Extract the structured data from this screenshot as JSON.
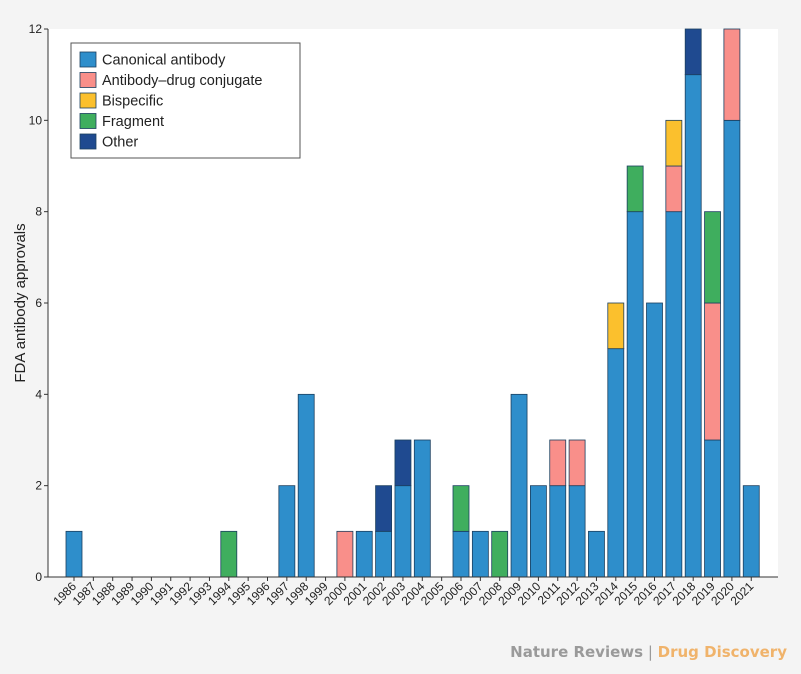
{
  "chart_data": {
    "type": "bar",
    "stacked": true,
    "title": "",
    "xlabel": "",
    "ylabel": "FDA antibody approvals",
    "ylim": [
      0,
      12
    ],
    "yticks": [
      0,
      2,
      4,
      6,
      8,
      10,
      12
    ],
    "grid": false,
    "legend_position": "top-left",
    "categories": [
      "1986",
      "1987",
      "1988",
      "1989",
      "1990",
      "1991",
      "1992",
      "1993",
      "1994",
      "1995",
      "1996",
      "1997",
      "1998",
      "1999",
      "2000",
      "2001",
      "2002",
      "2003",
      "2004",
      "2005",
      "2006",
      "2007",
      "2008",
      "2009",
      "2010",
      "2011",
      "2012",
      "2013",
      "2014",
      "2015",
      "2016",
      "2017",
      "2018",
      "2019",
      "2020",
      "2021"
    ],
    "series": [
      {
        "name": "Canonical antibody",
        "color": "#2e8ecb",
        "values": [
          1,
          0,
          0,
          0,
          0,
          0,
          0,
          0,
          0,
          0,
          0,
          2,
          4,
          0,
          0,
          1,
          1,
          2,
          3,
          0,
          1,
          1,
          0,
          4,
          2,
          2,
          2,
          1,
          5,
          8,
          6,
          8,
          11,
          3,
          10,
          2
        ]
      },
      {
        "name": "Antibody–drug conjugate",
        "color": "#f98f8a",
        "values": [
          0,
          0,
          0,
          0,
          0,
          0,
          0,
          0,
          0,
          0,
          0,
          0,
          0,
          0,
          1,
          0,
          0,
          0,
          0,
          0,
          0,
          0,
          0,
          0,
          0,
          1,
          1,
          0,
          0,
          0,
          0,
          1,
          0,
          3,
          2,
          0
        ]
      },
      {
        "name": "Bispecific",
        "color": "#fbc02d",
        "values": [
          0,
          0,
          0,
          0,
          0,
          0,
          0,
          0,
          0,
          0,
          0,
          0,
          0,
          0,
          0,
          0,
          0,
          0,
          0,
          0,
          0,
          0,
          0,
          0,
          0,
          0,
          0,
          0,
          1,
          0,
          0,
          1,
          0,
          0,
          0,
          0
        ]
      },
      {
        "name": "Fragment",
        "color": "#3fae5e",
        "values": [
          0,
          0,
          0,
          0,
          0,
          0,
          0,
          0,
          1,
          0,
          0,
          0,
          0,
          0,
          0,
          0,
          0,
          0,
          0,
          0,
          1,
          0,
          1,
          0,
          0,
          0,
          0,
          0,
          0,
          1,
          0,
          0,
          0,
          2,
          0,
          0
        ]
      },
      {
        "name": "Other",
        "color": "#1f4a90",
        "values": [
          0,
          0,
          0,
          0,
          0,
          0,
          0,
          0,
          0,
          0,
          0,
          0,
          0,
          0,
          0,
          0,
          1,
          1,
          0,
          0,
          0,
          0,
          0,
          0,
          0,
          0,
          0,
          0,
          0,
          0,
          0,
          0,
          1,
          0,
          0,
          0
        ]
      }
    ]
  },
  "footer": {
    "publisher": "Nature Reviews",
    "separator": " | ",
    "journal": "Drug Discovery"
  }
}
